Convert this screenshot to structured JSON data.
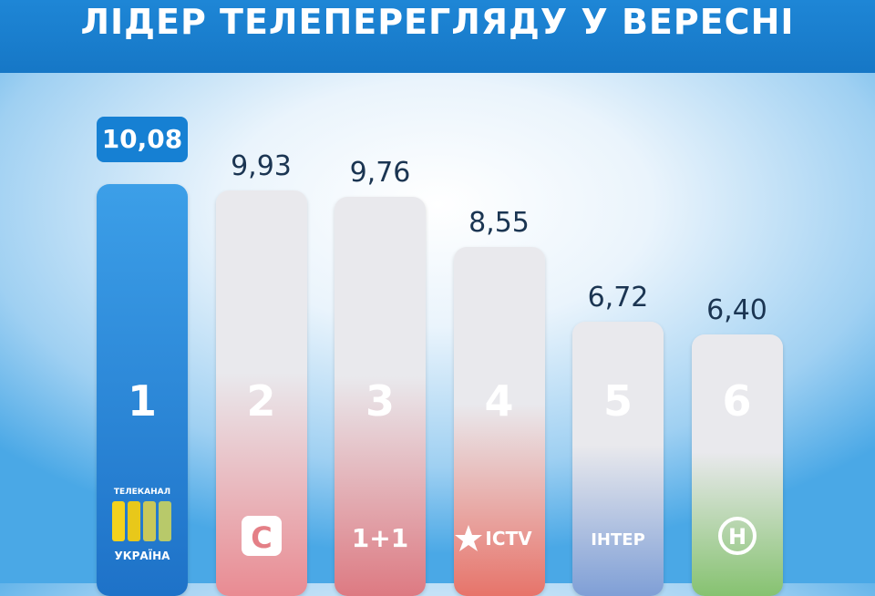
{
  "header": {
    "title": "ЛІДЕР ТЕЛЕПЕРЕГЛЯДУ У ВЕРЕСНІ"
  },
  "chart_data": {
    "type": "bar",
    "title": "ЛІДЕР ТЕЛЕПЕРЕГЛЯДУ У ВЕРЕСНІ",
    "categories": [
      "1",
      "2",
      "3",
      "4",
      "5",
      "6"
    ],
    "values": [
      10.08,
      9.93,
      9.76,
      8.55,
      6.72,
      6.4
    ],
    "value_labels": [
      "10,08",
      "9,93",
      "9,76",
      "8,55",
      "6,72",
      "6,40"
    ],
    "ylim": [
      0,
      10.08
    ],
    "grid": false,
    "legend": "none"
  },
  "bars": [
    {
      "rank": "1",
      "value": "10,08",
      "logo": "ukraina-logo",
      "logo_top": "ТЕЛЕКАНАЛ",
      "logo_bottom": "УКРАЇНА",
      "color_top": "#3c9fe8",
      "color_bottom": "#1e72c8",
      "highlight": true
    },
    {
      "rank": "2",
      "value": "9,93",
      "logo": "stb-logo",
      "logo_text": "С",
      "color_top": "#e9e9ed",
      "color_bottom": "#e98b92"
    },
    {
      "rank": "3",
      "value": "9,76",
      "logo": "1plus1-logo",
      "logo_text": "1+1",
      "color_top": "#e9e9ed",
      "color_bottom": "#dd7a82"
    },
    {
      "rank": "4",
      "value": "8,55",
      "logo": "ictv-logo",
      "logo_text": "ICTV",
      "color_top": "#e9e9ed",
      "color_bottom": "#e7746a"
    },
    {
      "rank": "5",
      "value": "6,72",
      "logo": "inter-logo",
      "logo_text": "ІНТЕР",
      "color_top": "#e9e9ed",
      "color_bottom": "#7f9fd6"
    },
    {
      "rank": "6",
      "value": "6,40",
      "logo": "novyi-kanal-logo",
      "logo_text": "Н",
      "color_top": "#e9e9ed",
      "color_bottom": "#86c270"
    }
  ]
}
